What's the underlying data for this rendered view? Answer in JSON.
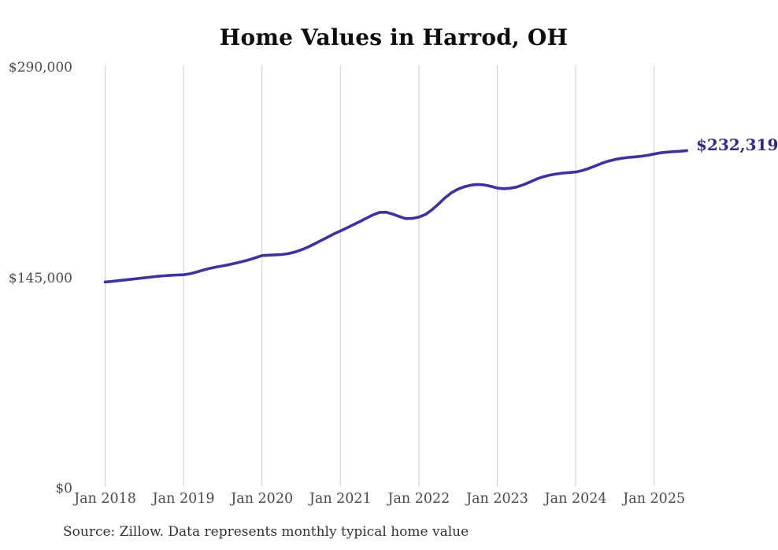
{
  "title": "Home Values in Harrod, OH",
  "end_label": "$232,319",
  "source": "Source: Zillow. Data represents monthly typical home value",
  "colors": {
    "line": "#3a33a0",
    "end_label": "#2e2a92",
    "grid": "#cccccc",
    "axis_text": "#4a4a4a",
    "title_text": "#0d0d0d",
    "source_text": "#333333"
  },
  "chart_data": {
    "type": "line",
    "title": "Home Values in Harrod, OH",
    "xlabel": "",
    "ylabel": "",
    "ylim": [
      0,
      290000
    ],
    "grid": "vertical-only",
    "legend": "none",
    "y_tick_labels": [
      "$290,000",
      "$145,000",
      "$0"
    ],
    "x_tick_labels": [
      "Jan 2018",
      "Jan 2019",
      "Jan 2020",
      "Jan 2021",
      "Jan 2022",
      "Jan 2023",
      "Jan 2024",
      "Jan 2025"
    ],
    "x_start_month": "2018-01",
    "x_end_month": "2025-06",
    "months_per_tick": 12,
    "annotation_final_value": 232319,
    "series": [
      {
        "name": "Monthly typical home value",
        "values": [
          141800,
          142200,
          142700,
          143200,
          143700,
          144200,
          144700,
          145200,
          145700,
          146100,
          146400,
          146600,
          146800,
          147500,
          148700,
          150000,
          151200,
          152100,
          152900,
          153800,
          154800,
          155900,
          157100,
          158500,
          160000,
          160300,
          160500,
          160700,
          161300,
          162400,
          163900,
          165800,
          168000,
          170300,
          172600,
          174900,
          177000,
          179100,
          181300,
          183500,
          185800,
          188100,
          189800,
          189900,
          188600,
          186900,
          185500,
          185600,
          186500,
          188300,
          191500,
          195500,
          199800,
          203300,
          205800,
          207500,
          208600,
          209000,
          208700,
          207700,
          206500,
          206100,
          206400,
          207300,
          208800,
          210700,
          212700,
          214300,
          215400,
          216200,
          216800,
          217200,
          217600,
          218600,
          220000,
          221800,
          223600,
          225100,
          226200,
          227000,
          227600,
          228000,
          228400,
          229100,
          230000,
          230800,
          231300,
          231600,
          231900,
          232319
        ]
      }
    ]
  }
}
